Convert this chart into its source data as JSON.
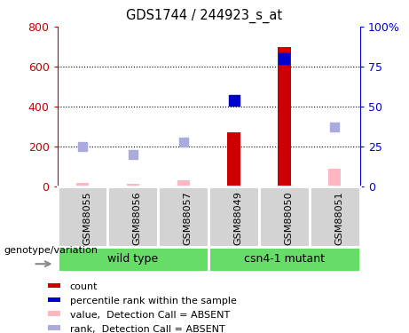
{
  "title": "GDS1744 / 244923_s_at",
  "samples": [
    "GSM88055",
    "GSM88056",
    "GSM88057",
    "GSM88049",
    "GSM88050",
    "GSM88051"
  ],
  "bar_color_present": "#CC0000",
  "bar_color_absent": "#FFB6C1",
  "dot_color_present": "#0000CC",
  "dot_color_absent": "#AAAADD",
  "count_values": [
    null,
    null,
    null,
    270,
    700,
    null
  ],
  "count_absent_values": [
    20,
    15,
    30,
    null,
    15,
    90
  ],
  "rank_present_values_pct": [
    null,
    null,
    null,
    54,
    80,
    null
  ],
  "rank_absent_values_pct": [
    25,
    20,
    28,
    null,
    null,
    37
  ],
  "ylim_left": [
    0,
    800
  ],
  "ylim_right": [
    0,
    100
  ],
  "yticks_left": [
    0,
    200,
    400,
    600,
    800
  ],
  "yticks_right": [
    0,
    25,
    50,
    75,
    100
  ],
  "grid_values": [
    200,
    400,
    600
  ],
  "legend_items": [
    {
      "label": "count",
      "color": "#CC0000"
    },
    {
      "label": "percentile rank within the sample",
      "color": "#0000CC"
    },
    {
      "label": "value,  Detection Call = ABSENT",
      "color": "#FFB6C1"
    },
    {
      "label": "rank,  Detection Call = ABSENT",
      "color": "#AAAADD"
    }
  ],
  "genotype_label": "genotype/variation",
  "left_color": "#CC0000",
  "right_color": "#0000CC",
  "bg_color": "#D3D3D3",
  "green_color": "#66DD66",
  "bar_width": 0.25
}
